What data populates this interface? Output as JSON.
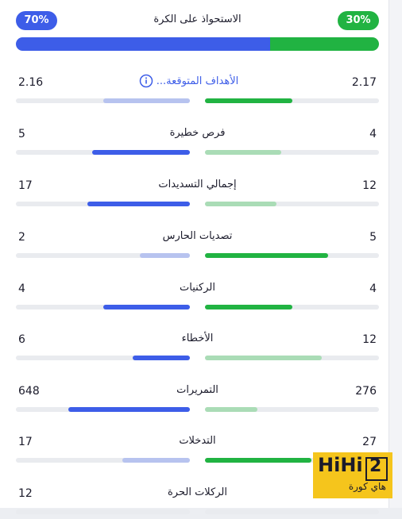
{
  "possession": {
    "title": "الاستحواذ على الكرة",
    "left_label": "70%",
    "right_label": "30%",
    "left_percent": 70,
    "right_percent": 30
  },
  "stats": [
    {
      "label": "الأهداف المتوقعة...",
      "left": "2.16",
      "right": "2.17",
      "left_fill": 0.5,
      "right_fill": 0.5,
      "left_style": "blue-light",
      "right_style": "green",
      "info": true
    },
    {
      "label": "فرص خطيرة",
      "left": "5",
      "right": "4",
      "left_fill": 0.56,
      "right_fill": 0.44,
      "left_style": "blue",
      "right_style": "green-light",
      "info": false
    },
    {
      "label": "إجمالي التسديدات",
      "left": "17",
      "right": "12",
      "left_fill": 0.59,
      "right_fill": 0.41,
      "left_style": "blue",
      "right_style": "green-light",
      "info": false
    },
    {
      "label": "تصديات الحارس",
      "left": "2",
      "right": "5",
      "left_fill": 0.29,
      "right_fill": 0.71,
      "left_style": "blue-light",
      "right_style": "green",
      "info": false
    },
    {
      "label": "الركنيات",
      "left": "4",
      "right": "4",
      "left_fill": 0.5,
      "right_fill": 0.5,
      "left_style": "blue",
      "right_style": "green",
      "info": false
    },
    {
      "label": "الأخطاء",
      "left": "6",
      "right": "12",
      "left_fill": 0.33,
      "right_fill": 0.67,
      "left_style": "blue",
      "right_style": "green-light",
      "info": false
    },
    {
      "label": "التمريرات",
      "left": "648",
      "right": "276",
      "left_fill": 0.7,
      "right_fill": 0.3,
      "left_style": "blue",
      "right_style": "green-light",
      "info": false
    },
    {
      "label": "التدخلات",
      "left": "17",
      "right": "27",
      "left_fill": 0.39,
      "right_fill": 0.61,
      "left_style": "blue-light",
      "right_style": "green",
      "info": false
    },
    {
      "label": "الركلات الحرة",
      "left": "12",
      "right": "",
      "left_fill": 0,
      "right_fill": 0,
      "left_style": "blue",
      "right_style": "green",
      "info": false
    }
  ],
  "watermark": {
    "logo": "HiHi",
    "logo_digit": "2",
    "subtitle": "هاي كورة"
  },
  "colors": {
    "team_left": "#3d5de8",
    "team_right": "#21b342",
    "watermark_bg": "#f5c51c"
  }
}
